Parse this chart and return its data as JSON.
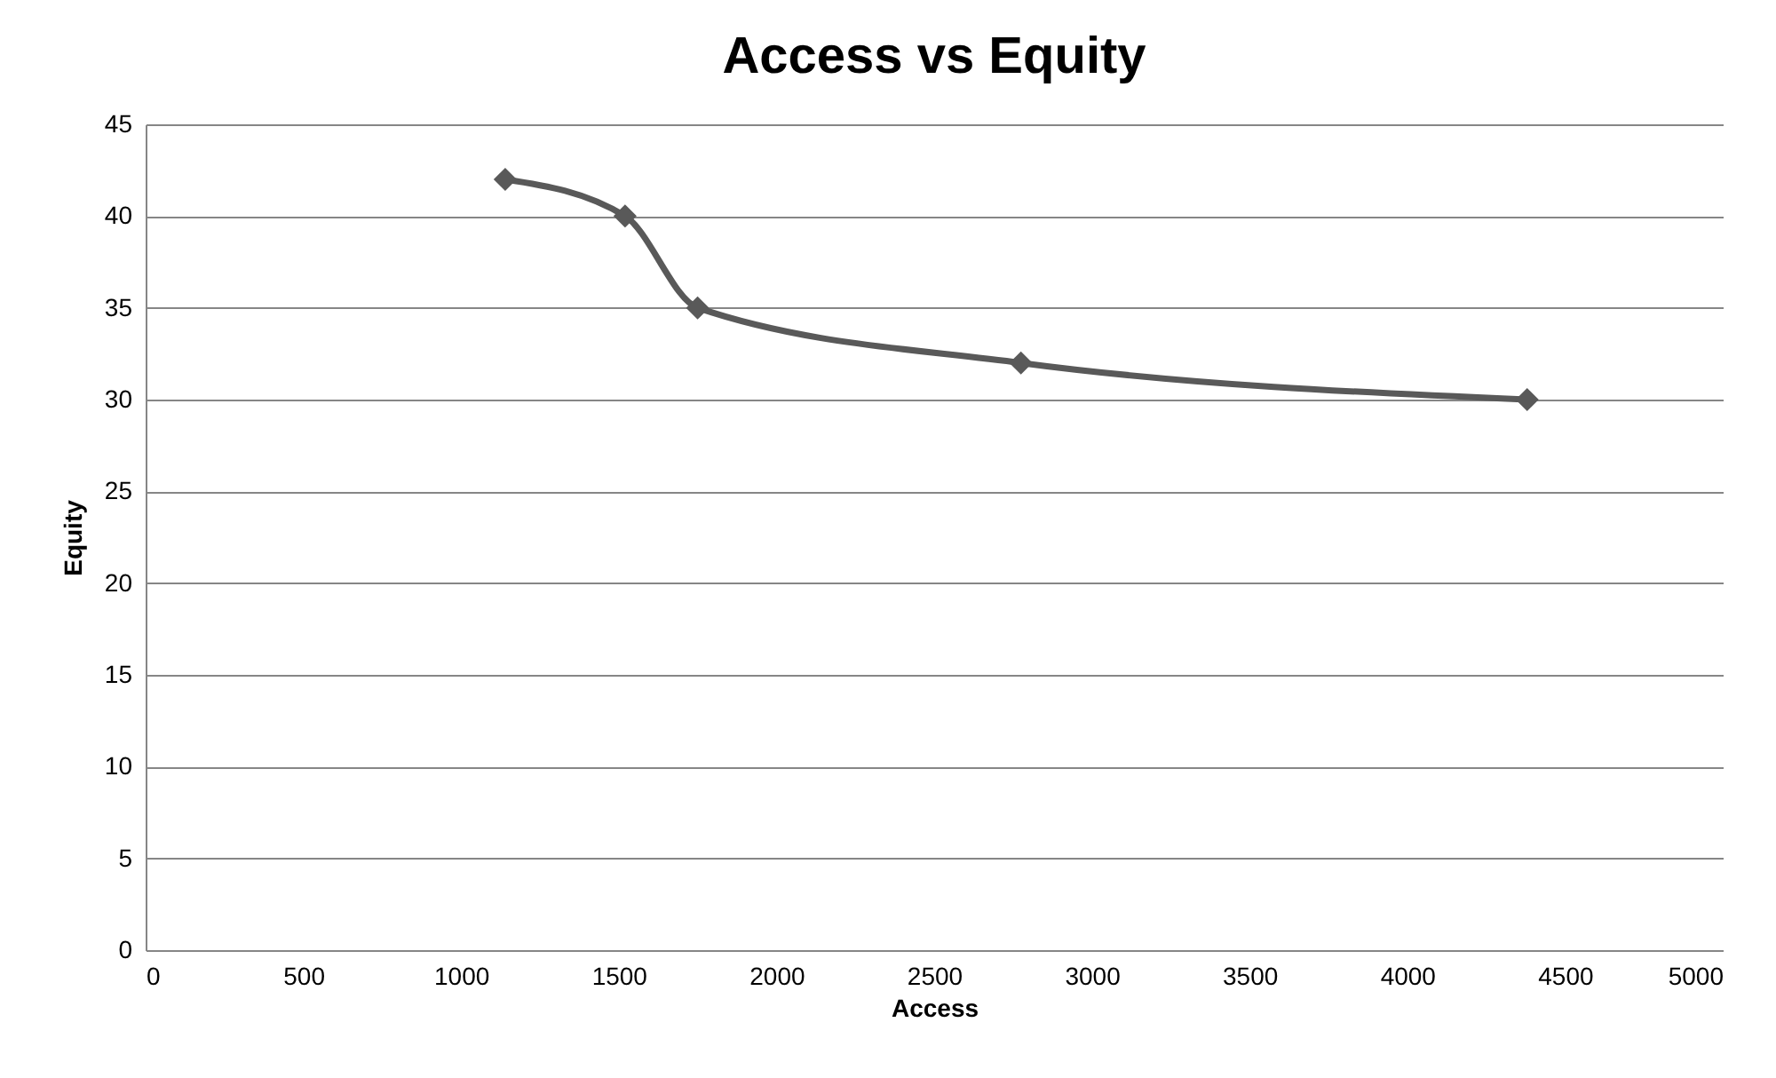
{
  "chart_data": {
    "type": "line",
    "title": "Access vs Equity",
    "xlabel": "Access",
    "ylabel": "Equity",
    "x": [
      1140,
      1520,
      1750,
      2775,
      4380
    ],
    "series": [
      {
        "color": "#595959",
        "values": [
          42,
          40,
          35,
          32,
          30
        ]
      }
    ],
    "xlim": [
      0,
      5000
    ],
    "xticks": [
      0,
      500,
      1000,
      1500,
      2000,
      2500,
      3000,
      3500,
      4000,
      4500,
      5000
    ],
    "ylim": [
      0,
      45
    ],
    "yticks": [
      0,
      5,
      10,
      15,
      20,
      25,
      30,
      35,
      40,
      45
    ],
    "grid": "y",
    "marker": "diamond",
    "line_style": "solid"
  }
}
